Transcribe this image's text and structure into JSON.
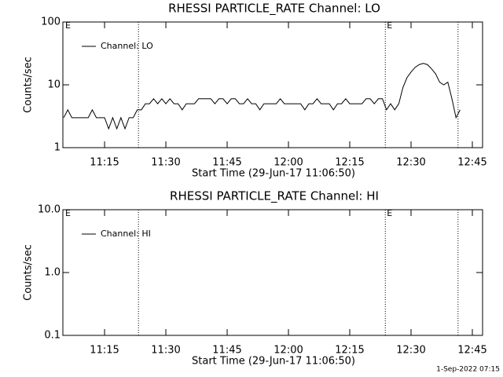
{
  "chart_data": [
    {
      "type": "line",
      "title": "RHESSI PARTICLE_RATE Channel: LO",
      "ylabel": "Counts/sec",
      "xlabel": "Start Time (29-Jun-17 11:06:50)",
      "log_y": true,
      "xlim": [
        664.8,
        767.5
      ],
      "ylim": [
        1,
        100
      ],
      "yticks": [
        1,
        10,
        100
      ],
      "xticks": [
        {
          "value": 675,
          "label": "11:15"
        },
        {
          "value": 690,
          "label": "11:30"
        },
        {
          "value": 705,
          "label": "11:45"
        },
        {
          "value": 720,
          "label": "12:00"
        },
        {
          "value": 735,
          "label": "12:15"
        },
        {
          "value": 750,
          "label": "12:30"
        },
        {
          "value": 765,
          "label": "12:45"
        }
      ],
      "markers": [
        683.3,
        743.7,
        761.5
      ],
      "annotations": [
        {
          "text": "E",
          "x": 665
        },
        {
          "text": "E",
          "x": 743.7
        }
      ],
      "x": [
        665,
        666,
        667,
        668,
        669,
        670,
        671,
        672,
        673,
        674,
        675,
        676,
        677,
        678,
        679,
        680,
        681,
        682,
        683,
        684,
        685,
        686,
        687,
        688,
        689,
        690,
        691,
        692,
        693,
        694,
        695,
        696,
        697,
        698,
        699,
        700,
        701,
        702,
        703,
        704,
        705,
        706,
        707,
        708,
        709,
        710,
        711,
        712,
        713,
        714,
        715,
        716,
        717,
        718,
        719,
        720,
        721,
        722,
        723,
        724,
        725,
        726,
        727,
        728,
        729,
        730,
        731,
        732,
        733,
        734,
        735,
        736,
        737,
        738,
        739,
        740,
        741,
        742,
        743,
        744,
        745,
        746,
        747,
        748,
        749,
        750,
        751,
        752,
        753,
        754,
        755,
        756,
        757,
        758,
        759,
        760,
        761,
        762
      ],
      "series": [
        {
          "name": "Channel: LO",
          "color": "#000000",
          "values": [
            3,
            4,
            3,
            3,
            3,
            3,
            3,
            4,
            3,
            3,
            3,
            2,
            3,
            2,
            3,
            2,
            3,
            3,
            4,
            4,
            5,
            5,
            6,
            5,
            6,
            5,
            6,
            5,
            5,
            4,
            5,
            5,
            5,
            6,
            6,
            6,
            6,
            5,
            6,
            6,
            5,
            6,
            6,
            5,
            5,
            6,
            5,
            5,
            4,
            5,
            5,
            5,
            5,
            6,
            5,
            5,
            5,
            5,
            5,
            4,
            5,
            5,
            6,
            5,
            5,
            5,
            4,
            5,
            5,
            6,
            5,
            5,
            5,
            5,
            6,
            6,
            5,
            6,
            6,
            4,
            5,
            4,
            5,
            9,
            13,
            16,
            19,
            21,
            22,
            21,
            18,
            15,
            11,
            10,
            11,
            6,
            3,
            4
          ]
        }
      ]
    },
    {
      "type": "line",
      "title": "RHESSI PARTICLE_RATE Channel: HI",
      "ylabel": "Counts/sec",
      "xlabel": "Start Time (29-Jun-17 11:06:50)",
      "log_y": true,
      "xlim": [
        664.8,
        767.5
      ],
      "ylim": [
        0.1,
        10
      ],
      "yticks": [
        0.1,
        {
          "value": 1,
          "label": "1.0"
        },
        {
          "value": 10,
          "label": "10.0"
        }
      ],
      "xticks": [
        {
          "value": 675,
          "label": "11:15"
        },
        {
          "value": 690,
          "label": "11:30"
        },
        {
          "value": 705,
          "label": "11:45"
        },
        {
          "value": 720,
          "label": "12:00"
        },
        {
          "value": 735,
          "label": "12:15"
        },
        {
          "value": 750,
          "label": "12:30"
        },
        {
          "value": 765,
          "label": "12:45"
        }
      ],
      "markers": [
        683.3,
        743.7,
        761.5
      ],
      "annotations": [
        {
          "text": "E",
          "x": 665
        },
        {
          "text": "E",
          "x": 743.7
        }
      ],
      "x": [],
      "series": [
        {
          "name": "Channel: HI",
          "color": "#000000",
          "values": []
        }
      ]
    }
  ],
  "footer": "1-Sep-2022 07:15"
}
